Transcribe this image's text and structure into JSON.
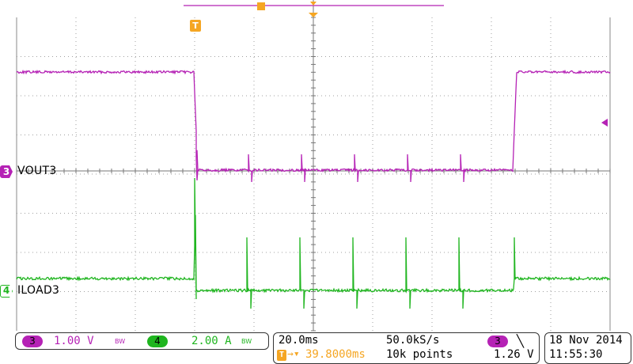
{
  "colors": {
    "ch3": "#b522b5",
    "ch4": "#1fb51f",
    "trigger": "#f5a623",
    "grid": "#9a9a9a"
  },
  "channels": [
    {
      "number": "3",
      "name": "VOUT3",
      "scale": "1.00 V",
      "bw_mark": "BW"
    },
    {
      "number": "4",
      "name": "ILOAD3",
      "scale": "2.00 A",
      "bw_mark": "BW"
    }
  ],
  "trigger_marker": "T",
  "timebase": {
    "time_per_div": "20.0ms",
    "sample_rate": "50.0kS/s",
    "trigger_delay": "39.8000ms",
    "record_length": "10k points",
    "trigger_channel": "3",
    "trigger_slope_icon": "falling-edge-icon",
    "trigger_level": "1.26 V"
  },
  "datetime": {
    "date": "18 Nov 2014",
    "time": "11:55:30"
  }
}
